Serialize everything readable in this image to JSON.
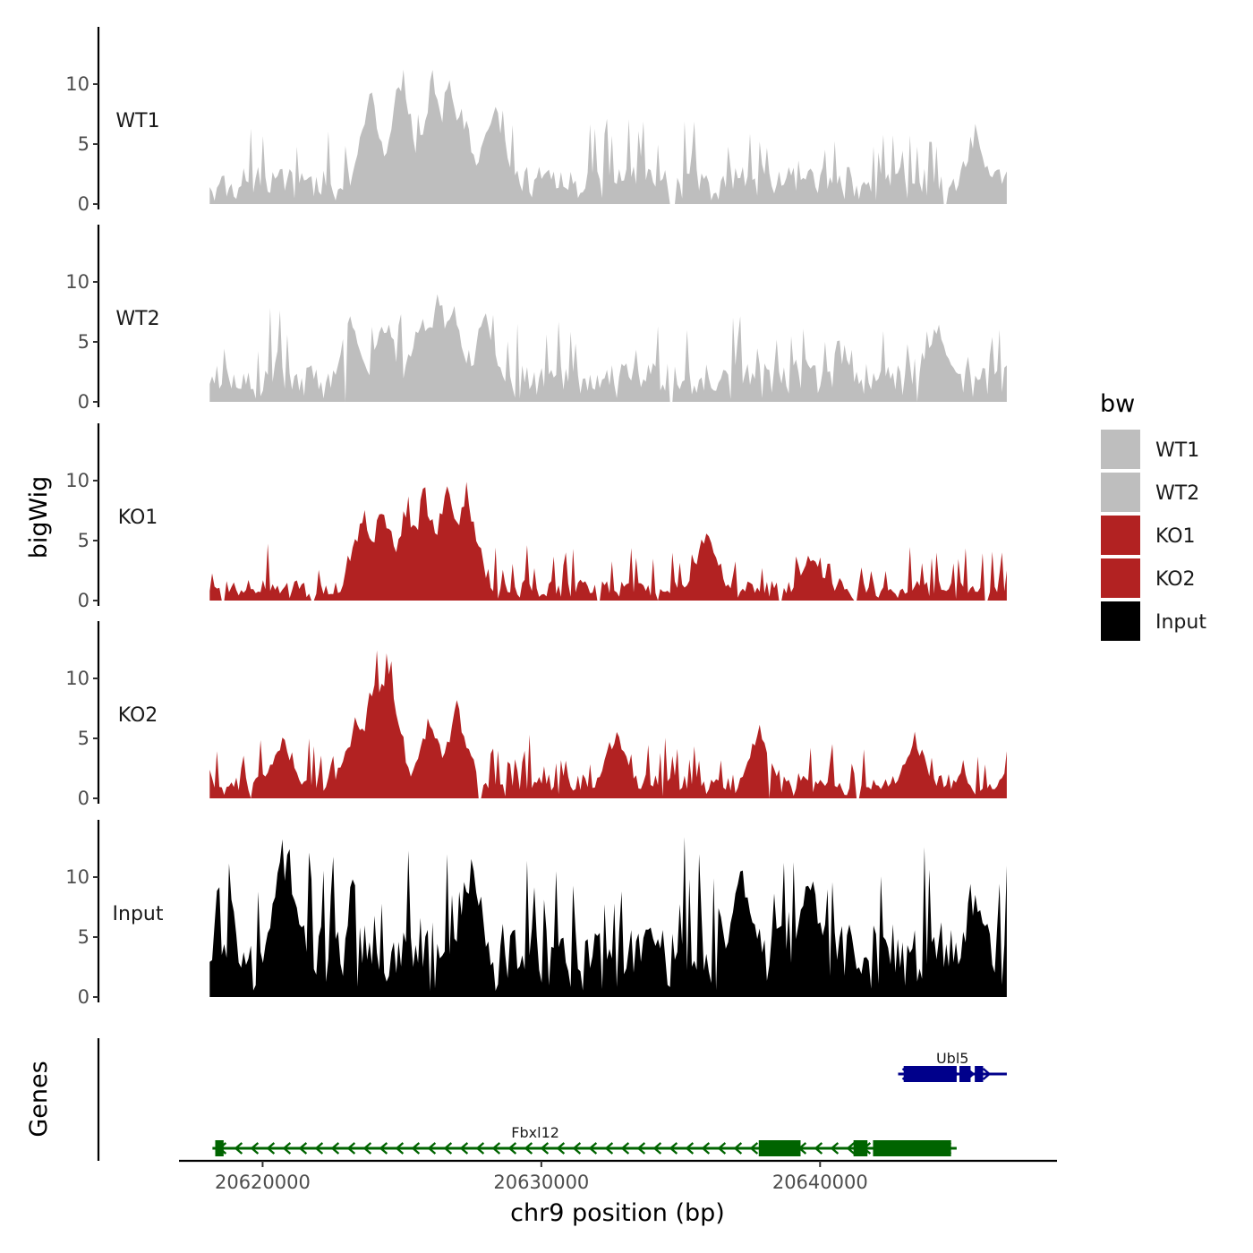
{
  "chart_data": {
    "type": "area",
    "subtype": "genome-browser-tracks",
    "chromosome": "chr9",
    "xlabel": "chr9 position (bp)",
    "ylabel": "bigWig",
    "genes_label": "Genes",
    "xlim": [
      20617000,
      20648500
    ],
    "data_range": [
      20618100,
      20646700
    ],
    "x_ticks": [
      20620000,
      20630000,
      20640000
    ],
    "x_tick_labels": [
      "20620000",
      "20630000",
      "20640000"
    ],
    "ylim": [
      0,
      14.5
    ],
    "y_ticks": [
      0,
      5,
      10
    ],
    "y_tick_labels": [
      "0",
      "5",
      "10"
    ],
    "legend": {
      "title": "bw",
      "position": "right",
      "entries": [
        {
          "label": "WT1",
          "color": "#bebebe"
        },
        {
          "label": "WT2",
          "color": "#bebebe"
        },
        {
          "label": "KO1",
          "color": "#b22222"
        },
        {
          "label": "KO2",
          "color": "#b22222"
        },
        {
          "label": "Input",
          "color": "#000000"
        }
      ]
    },
    "tracks": [
      {
        "name": "WT1",
        "color": "#bebebe",
        "seed": 11,
        "base": 2.5,
        "noise": 3.5,
        "gap_starts": [
          20634600,
          20644400
        ],
        "gap_ends": [
          20634800,
          20644600
        ],
        "peaks": [
          [
            20621200,
            0.2
          ],
          [
            20623900,
            10.5
          ],
          [
            20625000,
            12.4
          ],
          [
            20626100,
            11.5
          ],
          [
            20626700,
            12.5
          ],
          [
            20627100,
            9.5
          ],
          [
            20628300,
            10.0
          ],
          [
            20645600,
            6.2
          ]
        ]
      },
      {
        "name": "WT2",
        "color": "#bebebe",
        "seed": 23,
        "base": 2.6,
        "noise": 3.2,
        "gap_starts": [
          20622900,
          20634600,
          20643400
        ],
        "gap_ends": [
          20623000,
          20634750,
          20643550
        ],
        "peaks": [
          [
            20623200,
            8.2
          ],
          [
            20624400,
            7.8
          ],
          [
            20625700,
            8.5
          ],
          [
            20626300,
            9.8
          ],
          [
            20626800,
            9.5
          ],
          [
            20628000,
            7.7
          ],
          [
            20644200,
            7.4
          ]
        ]
      },
      {
        "name": "KO1",
        "color": "#b22222",
        "seed": 37,
        "base": 1.4,
        "noise": 2.2,
        "gap_starts": [
          20618500,
          20621700,
          20632000,
          20634100,
          20638500,
          20641200,
          20645900
        ],
        "gap_ends": [
          20618700,
          20621850,
          20632150,
          20634250,
          20638650,
          20641350,
          20646050
        ],
        "peaks": [
          [
            20623600,
            8.2
          ],
          [
            20624300,
            9.2
          ],
          [
            20625200,
            9.0
          ],
          [
            20625800,
            10.2
          ],
          [
            20626600,
            10.8
          ],
          [
            20627300,
            11.0
          ],
          [
            20635900,
            6.3
          ],
          [
            20639700,
            4.0
          ]
        ]
      },
      {
        "name": "KO2",
        "color": "#b22222",
        "seed": 53,
        "base": 1.7,
        "noise": 2.3,
        "gap_starts": [
          20619500,
          20627700,
          20638100,
          20641300
        ],
        "gap_ends": [
          20619650,
          20627850,
          20638250,
          20641450
        ],
        "peaks": [
          [
            20620700,
            5.7
          ],
          [
            20623400,
            8.0
          ],
          [
            20624100,
            12.6
          ],
          [
            20624500,
            13.8
          ],
          [
            20626000,
            7.5
          ],
          [
            20627000,
            8.5
          ],
          [
            20632700,
            6.6
          ],
          [
            20637800,
            6.4
          ],
          [
            20643400,
            5.8
          ]
        ]
      },
      {
        "name": "Input",
        "color": "#000000",
        "seed": 71,
        "base": 5.0,
        "noise": 4.8,
        "gap_starts": [],
        "gap_ends": [],
        "peaks": [
          [
            20620700,
            13.9
          ],
          [
            20620900,
            13.4
          ],
          [
            20627500,
            12.4
          ],
          [
            20637200,
            12.5
          ],
          [
            20639600,
            12.2
          ],
          [
            20645600,
            9.5
          ]
        ]
      }
    ],
    "genes": [
      {
        "name": "Ubl5",
        "strand": "+",
        "color": "#00008b",
        "row": 1,
        "start": 20642800,
        "end": 20646700,
        "exons": [
          [
            20643000,
            20644900
          ],
          [
            20645000,
            20645400
          ],
          [
            20645550,
            20645850
          ]
        ]
      },
      {
        "name": "Fbxl12",
        "strand": "-",
        "color": "#006400",
        "row": 2,
        "start": 20618200,
        "end": 20644900,
        "exons": [
          [
            20618300,
            20618600
          ],
          [
            20637800,
            20639300
          ],
          [
            20641200,
            20641700
          ],
          [
            20641900,
            20644700
          ]
        ]
      }
    ]
  }
}
